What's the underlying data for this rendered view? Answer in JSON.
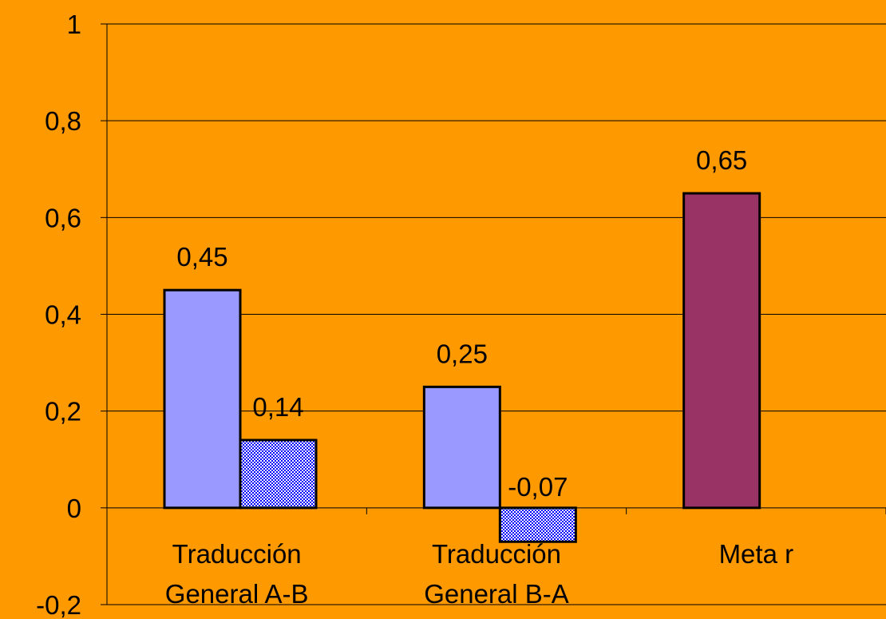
{
  "chart_data": {
    "type": "bar",
    "categories": [
      [
        "Traducción",
        "General A-B"
      ],
      [
        "Traducción",
        "General B-A"
      ],
      [
        "Meta r"
      ]
    ],
    "series": [
      {
        "values": [
          0.45,
          0.25,
          null
        ],
        "labels": [
          "0,45",
          "0,25",
          ""
        ],
        "color": "#9999FF",
        "pattern": "solid"
      },
      {
        "values": [
          0.14,
          -0.07,
          null
        ],
        "labels": [
          "0,14",
          "-0,07",
          ""
        ],
        "color": "#0000FF",
        "pattern": "checker"
      },
      {
        "values": [
          null,
          null,
          0.65
        ],
        "labels": [
          "",
          "",
          "0,65"
        ],
        "color": "#993366",
        "pattern": "solid"
      }
    ],
    "ylim": [
      -0.2,
      1
    ],
    "yticks": [
      -0.2,
      0,
      0.2,
      0.4,
      0.6,
      0.8,
      1
    ],
    "ytick_labels": [
      "-0,2",
      "0",
      "0,2",
      "0,4",
      "0,6",
      "0,8",
      "1"
    ],
    "grid": true,
    "background": "#FF9900",
    "title": "",
    "xlabel": "",
    "ylabel": ""
  }
}
